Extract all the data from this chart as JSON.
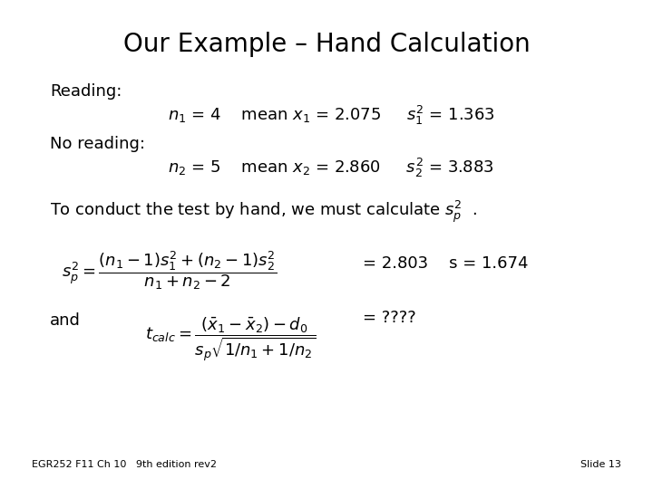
{
  "title": "Our Example – Hand Calculation",
  "background_color": "#ffffff",
  "text_color": "#000000",
  "title_fontsize": 20,
  "body_fontsize": 13,
  "small_fontsize": 12,
  "footer_fontsize": 8,
  "footer_left": "EGR252 F11 Ch 10   9th edition rev2",
  "footer_right": "Slide 13"
}
